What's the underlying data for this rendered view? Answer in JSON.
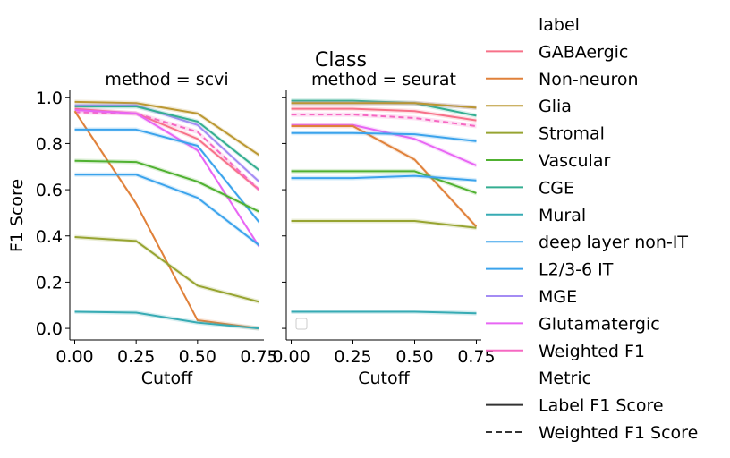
{
  "chart_data": {
    "type": "line",
    "title": "Class",
    "xlabel": "Cutoff",
    "ylabel": "F1 Score",
    "x": [
      0.0,
      0.25,
      0.5,
      0.75
    ],
    "xticks": [
      "0.00",
      "0.25",
      "0.50",
      "0.75"
    ],
    "yticks": [
      "0.0",
      "0.2",
      "0.4",
      "0.6",
      "0.8",
      "1.0"
    ],
    "xlim": [
      -0.02,
      0.77
    ],
    "ylim": [
      -0.05,
      1.03
    ],
    "grid": false,
    "legend_position": "right",
    "legend": {
      "hue_title": "label",
      "style_title": "Metric",
      "style_items": [
        {
          "name": "Label F1 Score",
          "dash": "solid"
        },
        {
          "name": "Weighted F1 Score",
          "dash": "dashed"
        }
      ]
    },
    "colors": {
      "GABAergic": "#f77189",
      "Non-neuron": "#e0813a",
      "Glia": "#bb9832",
      "Stromal": "#97a431",
      "Vascular": "#50b131",
      "CGE": "#34ae91",
      "Mural": "#37abb4",
      "deep layer non-IT": "#3ba3ec",
      "L2/3-6 IT": "#3ba3ec",
      "MGE": "#a48cf4",
      "Glutamatergic": "#e866f4",
      "Weighted F1": "#f668c2"
    },
    "labels": [
      "GABAergic",
      "Non-neuron",
      "Glia",
      "Stromal",
      "Vascular",
      "CGE",
      "Mural",
      "deep layer non-IT",
      "L2/3-6 IT",
      "MGE",
      "Glutamatergic",
      "Weighted F1"
    ],
    "panels": [
      {
        "title": "method = scvi",
        "series": [
          {
            "name": "Glia",
            "metric": "Label F1 Score",
            "values": [
              0.98,
              0.975,
              0.93,
              0.75
            ]
          },
          {
            "name": "MGE",
            "metric": "Label F1 Score",
            "values": [
              0.965,
              0.965,
              0.88,
              0.635
            ]
          },
          {
            "name": "CGE",
            "metric": "Label F1 Score",
            "values": [
              0.96,
              0.96,
              0.895,
              0.685
            ]
          },
          {
            "name": "GABAergic",
            "metric": "Label F1 Score",
            "values": [
              0.95,
              0.93,
              0.82,
              0.6
            ]
          },
          {
            "name": "Weighted F1",
            "metric": "Weighted F1 Score",
            "values": [
              0.935,
              0.93,
              0.85,
              0.6
            ]
          },
          {
            "name": "Glutamatergic",
            "metric": "Label F1 Score",
            "values": [
              0.945,
              0.93,
              0.77,
              0.355
            ]
          },
          {
            "name": "Non-neuron",
            "metric": "Label F1 Score",
            "values": [
              0.94,
              0.54,
              0.035,
              0.0
            ]
          },
          {
            "name": "L2/3-6 IT",
            "metric": "Label F1 Score",
            "values": [
              0.86,
              0.86,
              0.79,
              0.46
            ]
          },
          {
            "name": "Vascular",
            "metric": "Label F1 Score",
            "values": [
              0.725,
              0.72,
              0.635,
              0.505
            ]
          },
          {
            "name": "deep layer non-IT",
            "metric": "Label F1 Score",
            "values": [
              0.665,
              0.665,
              0.565,
              0.36
            ]
          },
          {
            "name": "Stromal",
            "metric": "Label F1 Score",
            "values": [
              0.395,
              0.378,
              0.185,
              0.115
            ]
          },
          {
            "name": "Mural",
            "metric": "Label F1 Score",
            "values": [
              0.072,
              0.068,
              0.025,
              0.0
            ]
          }
        ]
      },
      {
        "title": "method = seurat",
        "series": [
          {
            "name": "CGE",
            "metric": "Label F1 Score",
            "values": [
              0.985,
              0.985,
              0.975,
              0.92
            ]
          },
          {
            "name": "MGE",
            "metric": "Label F1 Score",
            "values": [
              0.975,
              0.975,
              0.975,
              0.955
            ]
          },
          {
            "name": "Glia",
            "metric": "Label F1 Score",
            "values": [
              0.975,
              0.975,
              0.975,
              0.955
            ]
          },
          {
            "name": "GABAergic",
            "metric": "Label F1 Score",
            "values": [
              0.95,
              0.95,
              0.94,
              0.9
            ]
          },
          {
            "name": "Weighted F1",
            "metric": "Weighted F1 Score",
            "values": [
              0.925,
              0.925,
              0.91,
              0.875
            ]
          },
          {
            "name": "Glutamatergic",
            "metric": "Label F1 Score",
            "values": [
              0.88,
              0.88,
              0.82,
              0.705
            ]
          },
          {
            "name": "Non-neuron",
            "metric": "Label F1 Score",
            "values": [
              0.875,
              0.875,
              0.73,
              0.44
            ]
          },
          {
            "name": "L2/3-6 IT",
            "metric": "Label F1 Score",
            "values": [
              0.845,
              0.845,
              0.84,
              0.81
            ]
          },
          {
            "name": "Vascular",
            "metric": "Label F1 Score",
            "values": [
              0.68,
              0.68,
              0.68,
              0.585
            ]
          },
          {
            "name": "deep layer non-IT",
            "metric": "Label F1 Score",
            "values": [
              0.65,
              0.65,
              0.66,
              0.64
            ]
          },
          {
            "name": "Stromal",
            "metric": "Label F1 Score",
            "values": [
              0.465,
              0.465,
              0.465,
              0.435
            ]
          },
          {
            "name": "Mural",
            "metric": "Label F1 Score",
            "values": [
              0.072,
              0.072,
              0.072,
              0.065
            ]
          }
        ]
      }
    ]
  }
}
